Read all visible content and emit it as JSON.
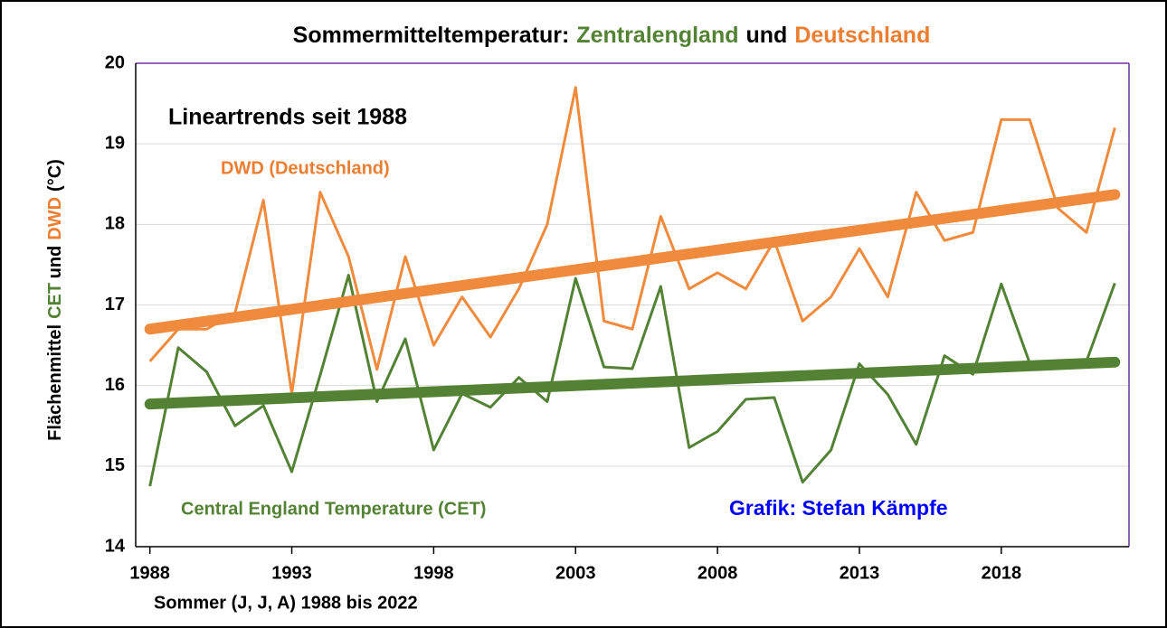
{
  "chart_data": {
    "type": "line",
    "title_parts": [
      {
        "text": "Sommermitteltemperatur:",
        "color": "#000000"
      },
      {
        "text": "Zentralengland",
        "color": "#548235"
      },
      {
        "text": "und",
        "color": "#000000"
      },
      {
        "text": "Deutschland",
        "color": "#ed7d31"
      }
    ],
    "ylabel_parts": [
      {
        "text": "Flächenmittel",
        "color": "#000000"
      },
      {
        "text": "CET",
        "color": "#548235"
      },
      {
        "text": "und",
        "color": "#000000"
      },
      {
        "text": "DWD",
        "color": "#ed7d31"
      },
      {
        "text": "(°C)",
        "color": "#000000"
      }
    ],
    "xlabel": "Sommer (J, J, A) 1988 bis 2022",
    "annotations": [
      {
        "text": "Lineartrends seit 1988",
        "color": "#000000"
      },
      {
        "text": "DWD (Deutschland)",
        "color": "#ed7d31"
      },
      {
        "text": "Central England Temperature (CET)",
        "color": "#548235"
      },
      {
        "text": "Grafik: Stefan Kämpfe",
        "color": "#0000ff"
      }
    ],
    "x": [
      1988,
      1989,
      1990,
      1991,
      1992,
      1993,
      1994,
      1995,
      1996,
      1997,
      1998,
      1999,
      2000,
      2001,
      2002,
      2003,
      2004,
      2005,
      2006,
      2007,
      2008,
      2009,
      2010,
      2011,
      2012,
      2013,
      2014,
      2015,
      2016,
      2017,
      2018,
      2019,
      2020,
      2021,
      2022
    ],
    "series": [
      {
        "color": "#f08a3c",
        "values": [
          16.3,
          16.7,
          16.7,
          16.9,
          18.3,
          15.9,
          18.4,
          17.6,
          16.2,
          17.6,
          16.5,
          17.1,
          16.6,
          17.2,
          18.0,
          19.7,
          16.8,
          16.7,
          18.1,
          17.2,
          17.4,
          17.2,
          17.8,
          16.8,
          17.1,
          17.7,
          17.1,
          18.4,
          17.8,
          17.9,
          19.3,
          19.3,
          18.2,
          17.9,
          19.2
        ]
      },
      {
        "color": "#548235",
        "values": [
          14.75,
          16.47,
          16.17,
          15.5,
          15.75,
          14.93,
          16.13,
          17.37,
          15.8,
          16.58,
          15.2,
          15.9,
          15.73,
          16.1,
          15.8,
          17.33,
          16.23,
          16.21,
          17.23,
          15.23,
          15.43,
          15.83,
          15.85,
          14.8,
          15.2,
          16.27,
          15.89,
          15.27,
          16.37,
          16.14,
          17.26,
          16.28,
          16.3,
          16.3,
          17.27
        ]
      }
    ],
    "trend_lines": [
      {
        "color": "#f08a3c",
        "x": [
          1988,
          2022
        ],
        "values": [
          16.7,
          18.37
        ]
      },
      {
        "color": "#548235",
        "x": [
          1988,
          2022
        ],
        "values": [
          15.77,
          16.29
        ]
      }
    ],
    "xlim": [
      1987.5,
      2022.5
    ],
    "xticks": [
      1988,
      1993,
      1998,
      2003,
      2008,
      2013,
      2018
    ],
    "ylim": [
      14,
      20
    ],
    "yticks": [
      14,
      15,
      16,
      17,
      18,
      19,
      20
    ],
    "grid": true
  }
}
